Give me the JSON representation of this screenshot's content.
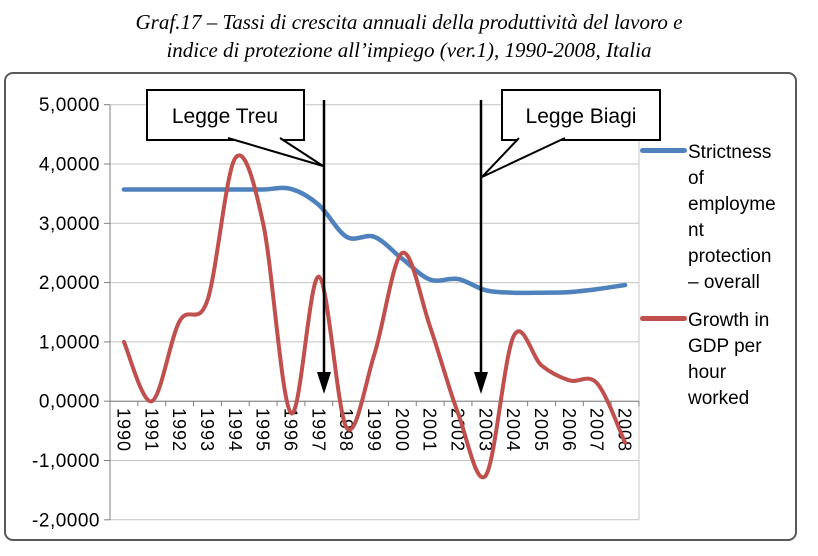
{
  "header": {
    "title_line1": "Graf.17 – Tassi di crescita annuali della  produttività del lavoro e",
    "title_line2": "indice di protezione all’impiego (ver.1), 1990-2008, Italia"
  },
  "chart_data": {
    "type": "line",
    "title": "Graf.17 – Tassi di crescita annuali della produttività del lavoro e indice di protezione all’impiego (ver.1), 1990-2008, Italia",
    "categories": [
      "1990",
      "1991",
      "1992",
      "1993",
      "1994",
      "1995",
      "1996",
      "1997",
      "1998",
      "1999",
      "2000",
      "2001",
      "2002",
      "2003",
      "2004",
      "2005",
      "2006",
      "2007",
      "2008"
    ],
    "series": [
      {
        "name": "Strictness of employme nt protection – overall",
        "color": "#4F81BD",
        "smoothed": true,
        "line_width": 4.5,
        "values": [
          3.57,
          3.57,
          3.57,
          3.57,
          3.57,
          3.57,
          3.58,
          3.31,
          2.77,
          2.77,
          2.4,
          2.05,
          2.06,
          1.87,
          1.83,
          1.83,
          1.84,
          1.89,
          1.96
        ]
      },
      {
        "name": "Growth in GDP per hour worked",
        "color": "#C0504D",
        "smoothed": true,
        "line_width": 4,
        "values": [
          1.0,
          0.0,
          1.35,
          1.7,
          4.1,
          3.0,
          -0.2,
          2.1,
          -0.45,
          0.8,
          2.5,
          1.25,
          -0.2,
          -1.25,
          1.1,
          0.6,
          0.35,
          0.3,
          -0.7
        ]
      }
    ],
    "ylim": [
      -2,
      5
    ],
    "y_ticks": [
      5,
      4,
      3,
      2,
      1,
      0,
      -1,
      -2
    ],
    "y_tick_labels": [
      "5,0000",
      "4,0000",
      "3,0000",
      "2,0000",
      "1,0000",
      "0,0000",
      "-1,0000",
      "-2,0000"
    ],
    "grid": "horizontal",
    "legend_position": "right",
    "annotations": [
      {
        "label": "Legge Treu",
        "target_year": "1997"
      },
      {
        "label": "Legge Biagi",
        "target_year": "2003"
      }
    ]
  },
  "legend": {
    "items": [
      {
        "label": "Strictness\nof\nemployme\nnt\nprotection\n– overall",
        "color": "#4F81BD"
      },
      {
        "label": "Growth in\nGDP per\nhour\nworked",
        "color": "#C0504D"
      }
    ]
  }
}
